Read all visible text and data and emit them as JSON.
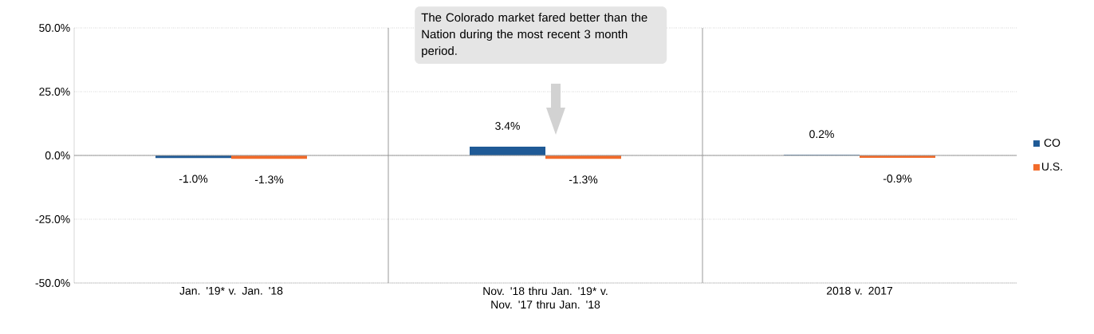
{
  "chart_data": {
    "type": "bar",
    "categories": [
      "Jan. '19* v. Jan. '18",
      "Nov. '18 thru Jan. '19* v. Nov. '17 thru Jan. '18",
      "2018 v. 2017"
    ],
    "series": [
      {
        "name": "CO",
        "color": "#1f5a96",
        "values": [
          -1.0,
          3.4,
          0.2
        ],
        "value_labels": [
          "-1.0%",
          "3.4%",
          "0.2%"
        ]
      },
      {
        "name": "U.S.",
        "color": "#f26b2a",
        "values": [
          -1.3,
          -1.3,
          -0.9
        ],
        "value_labels": [
          "-1.3%",
          "-1.3%",
          "-0.9%"
        ]
      }
    ],
    "ylim": [
      -50,
      50
    ],
    "yticks": [
      {
        "value": -50,
        "label": "-50.0%"
      },
      {
        "value": -25,
        "label": "-25.0%"
      },
      {
        "value": 0,
        "label": "0.0%"
      },
      {
        "value": 25,
        "label": "25.0%"
      },
      {
        "value": 50,
        "label": "50.0%"
      }
    ],
    "grid": true,
    "legend": "right",
    "annotations": [
      "The Colorado market fared better than the Nation during the most recent 3 month period."
    ]
  }
}
